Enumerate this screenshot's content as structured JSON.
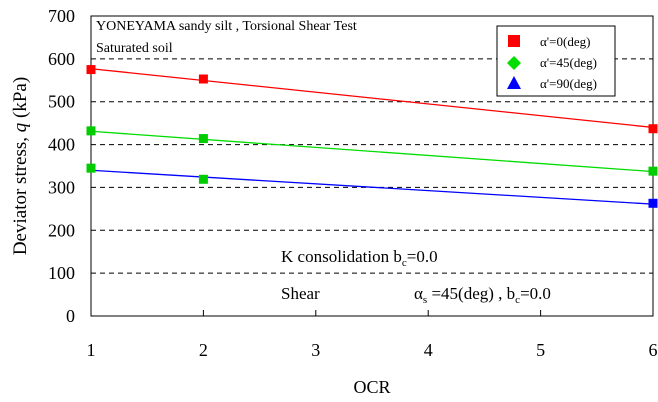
{
  "chart_data": {
    "type": "scatter",
    "title_lines": [
      "YONEYAMA sandy silt , Torsional Shear Test",
      "Saturated soil"
    ],
    "xlabel": "OCR",
    "ylabel": {
      "prefix": "Deviator stress, ",
      "var": "q",
      "unit": "(kPa)"
    },
    "xlim": [
      1,
      6
    ],
    "ylim": [
      0,
      700
    ],
    "x_ticks": [
      1,
      2,
      3,
      4,
      5,
      6
    ],
    "y_ticks": [
      0,
      100,
      200,
      300,
      400,
      500,
      600,
      700
    ],
    "grid": "horizontal-dashed",
    "legend_position": "top-right",
    "series": [
      {
        "name": "α'=0(deg)",
        "marker": "square",
        "color": "#ff0000",
        "points": [
          [
            1,
            575
          ],
          [
            2,
            553
          ],
          [
            6,
            437
          ]
        ],
        "fit": [
          [
            1,
            577
          ],
          [
            6,
            440
          ]
        ]
      },
      {
        "name": "α'=45(deg)",
        "marker": "diamond",
        "color": "#00dd00",
        "points": [
          [
            1,
            432
          ],
          [
            2,
            414
          ],
          [
            6,
            338
          ]
        ],
        "fit": [
          [
            1,
            431
          ],
          [
            6,
            337
          ]
        ]
      },
      {
        "name": "α'=90(deg)",
        "marker": "triangle",
        "color": "#0000ff",
        "points": [
          [
            1,
            345
          ],
          [
            2,
            319
          ],
          [
            6,
            263
          ]
        ],
        "fit": [
          [
            1,
            340
          ],
          [
            6,
            261
          ]
        ]
      }
    ],
    "point_color": "#00cc00",
    "annotations": {
      "consolidation": {
        "text": "K consolidation b",
        "sub": "c",
        "tail": "=0.0"
      },
      "shear_label": "Shear",
      "shear_detail": {
        "alpha": "α",
        "sub1": "s",
        "mid": " =45(deg) , b",
        "sub2": "c",
        "tail": "=0.0"
      }
    }
  }
}
